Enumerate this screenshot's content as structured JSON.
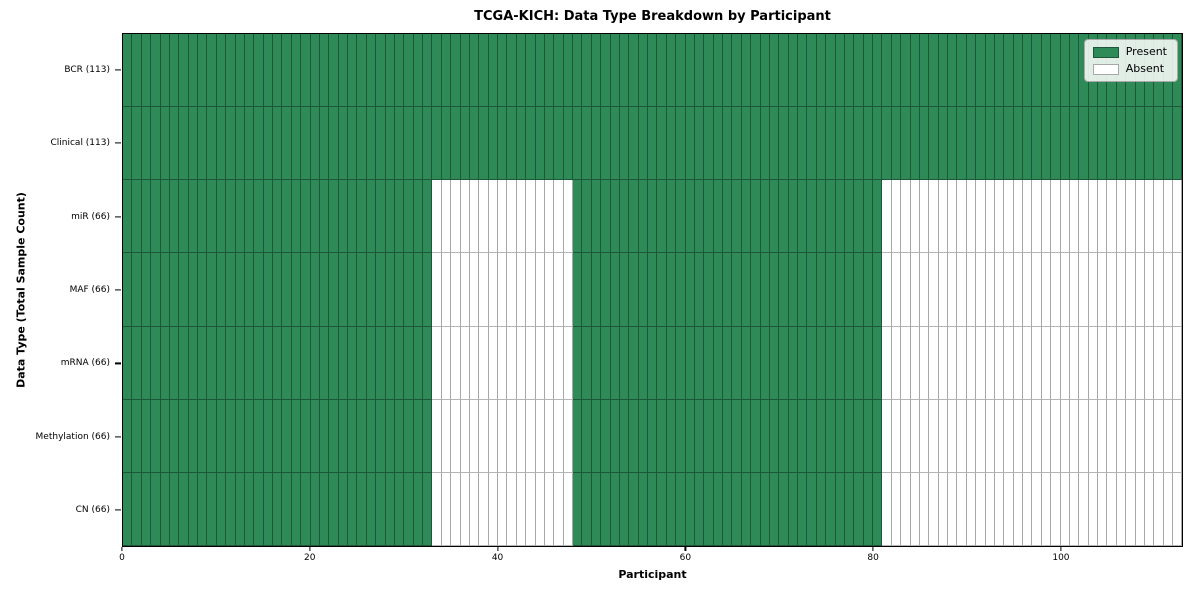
{
  "chart_data": {
    "type": "heatmap",
    "title": "TCGA-KICH: Data Type Breakdown by Participant",
    "xlabel": "Participant",
    "ylabel": "Data Type (Total Sample Count)",
    "n_participants": 113,
    "xlim": [
      0,
      113
    ],
    "x_ticks": [
      0,
      20,
      40,
      60,
      80,
      100
    ],
    "grid": false,
    "legend_position": "upper right",
    "legend": [
      {
        "label": "Present",
        "state": "present"
      },
      {
        "label": "Absent",
        "state": "absent"
      }
    ],
    "colors": {
      "present_fill": "#2e8b57",
      "present_edge": "#1d5638",
      "absent_fill": "#ffffff",
      "absent_edge": "#a8a8a8"
    },
    "rows": [
      {
        "label": "BCR (113)",
        "data_type": "BCR",
        "total_samples": 113,
        "present_ranges": [
          [
            0,
            113
          ]
        ]
      },
      {
        "label": "Clinical (113)",
        "data_type": "Clinical",
        "total_samples": 113,
        "present_ranges": [
          [
            0,
            113
          ]
        ]
      },
      {
        "label": "miR (66)",
        "data_type": "miR",
        "total_samples": 66,
        "present_ranges": [
          [
            0,
            33
          ],
          [
            48,
            81
          ]
        ]
      },
      {
        "label": "MAF (66)",
        "data_type": "MAF",
        "total_samples": 66,
        "present_ranges": [
          [
            0,
            33
          ],
          [
            48,
            81
          ]
        ]
      },
      {
        "label": "mRNA (66)",
        "data_type": "mRNA",
        "total_samples": 66,
        "present_ranges": [
          [
            0,
            33
          ],
          [
            48,
            81
          ]
        ]
      },
      {
        "label": "Methylation (66)",
        "data_type": "Methylation",
        "total_samples": 66,
        "present_ranges": [
          [
            0,
            33
          ],
          [
            48,
            81
          ]
        ]
      },
      {
        "label": "CN (66)",
        "data_type": "CN",
        "total_samples": 66,
        "present_ranges": [
          [
            0,
            33
          ],
          [
            48,
            81
          ]
        ]
      }
    ]
  }
}
